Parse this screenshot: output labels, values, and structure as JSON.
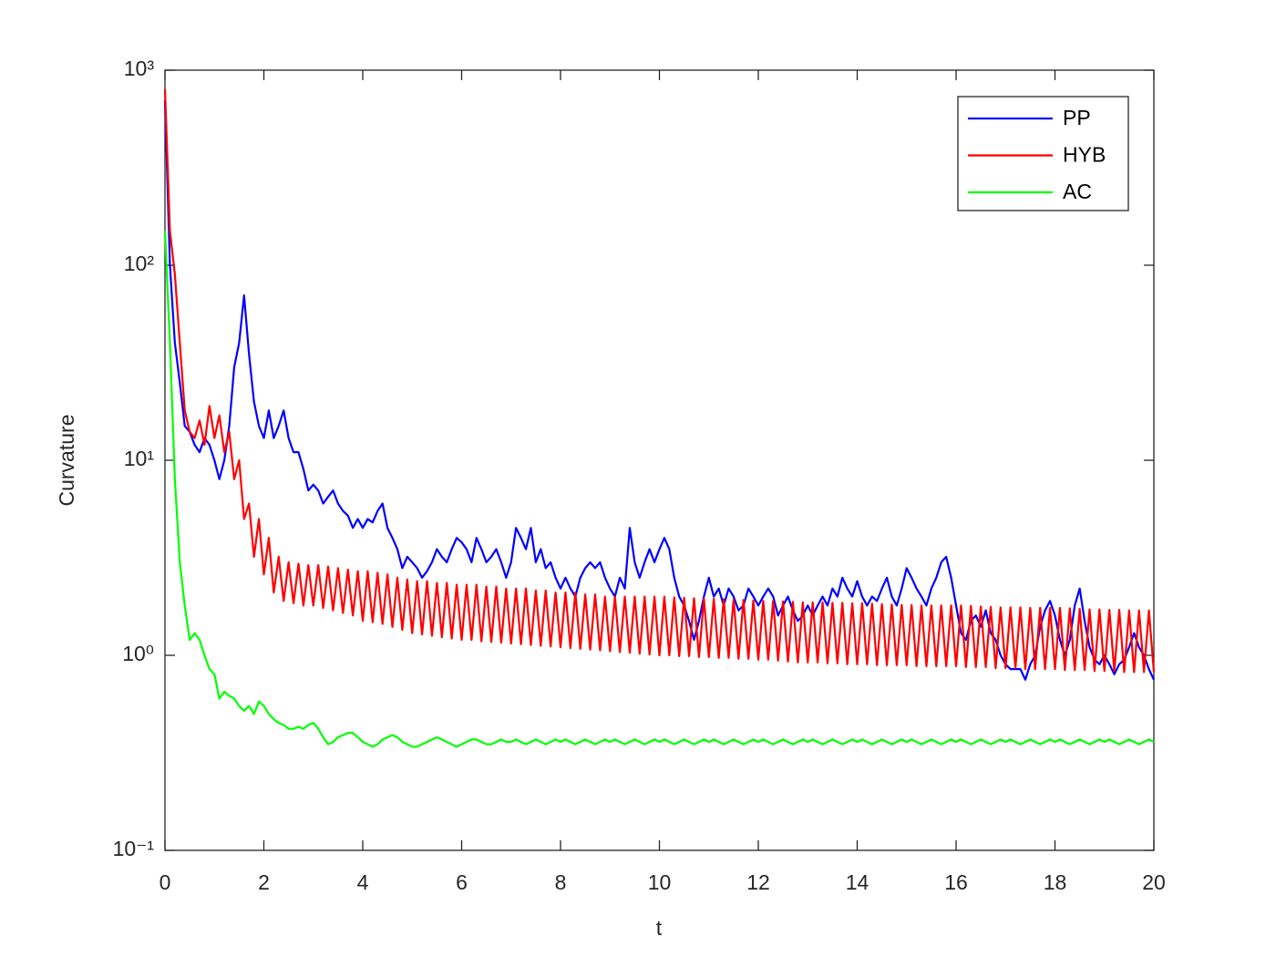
{
  "chart_data": {
    "type": "line",
    "xlabel": "t",
    "ylabel": "Curvature",
    "yscale": "log",
    "legend": "northeast",
    "xlim": [
      0,
      20
    ],
    "xticks": [
      0,
      2,
      4,
      6,
      8,
      10,
      12,
      14,
      16,
      18,
      20
    ],
    "ylim": [
      0.1,
      1000
    ],
    "yticks": [
      {
        "value": 0.1,
        "label": "10⁻¹"
      },
      {
        "value": 1,
        "label": "10⁰"
      },
      {
        "value": 10,
        "label": "10¹"
      },
      {
        "value": 100,
        "label": "10²"
      },
      {
        "value": 1000,
        "label": "10³"
      }
    ],
    "x": [
      0,
      0.1,
      0.2,
      0.3,
      0.4,
      0.5,
      0.6,
      0.7,
      0.8,
      0.9,
      1,
      1.1,
      1.2,
      1.3,
      1.4,
      1.5,
      1.6,
      1.7,
      1.8,
      1.9,
      2,
      2.1,
      2.2,
      2.3,
      2.4,
      2.5,
      2.6,
      2.7,
      2.8,
      2.9,
      3,
      3.1,
      3.2,
      3.3,
      3.4,
      3.5,
      3.6,
      3.7,
      3.8,
      3.9,
      4,
      4.1,
      4.2,
      4.3,
      4.4,
      4.5,
      4.6,
      4.7,
      4.8,
      4.9,
      5,
      5.1,
      5.2,
      5.3,
      5.4,
      5.5,
      5.6,
      5.7,
      5.8,
      5.9,
      6,
      6.1,
      6.2,
      6.3,
      6.4,
      6.5,
      6.6,
      6.7,
      6.8,
      6.9,
      7,
      7.1,
      7.2,
      7.3,
      7.4,
      7.5,
      7.6,
      7.7,
      7.8,
      7.9,
      8,
      8.1,
      8.2,
      8.3,
      8.4,
      8.5,
      8.6,
      8.7,
      8.8,
      8.9,
      9,
      9.1,
      9.2,
      9.3,
      9.4,
      9.5,
      9.6,
      9.7,
      9.8,
      9.9,
      10,
      10.1,
      10.2,
      10.3,
      10.4,
      10.5,
      10.6,
      10.7,
      10.8,
      10.9,
      11,
      11.1,
      11.2,
      11.3,
      11.4,
      11.5,
      11.6,
      11.7,
      11.8,
      11.9,
      12,
      12.1,
      12.2,
      12.3,
      12.4,
      12.5,
      12.6,
      12.7,
      12.8,
      12.9,
      13,
      13.1,
      13.2,
      13.3,
      13.4,
      13.5,
      13.6,
      13.7,
      13.8,
      13.9,
      14,
      14.1,
      14.2,
      14.3,
      14.4,
      14.5,
      14.6,
      14.7,
      14.8,
      14.9,
      15,
      15.1,
      15.2,
      15.3,
      15.4,
      15.5,
      15.6,
      15.7,
      15.8,
      15.9,
      16,
      16.1,
      16.2,
      16.3,
      16.4,
      16.5,
      16.6,
      16.7,
      16.8,
      16.9,
      17,
      17.1,
      17.2,
      17.3,
      17.4,
      17.5,
      17.6,
      17.7,
      17.8,
      17.9,
      18,
      18.1,
      18.2,
      18.3,
      18.4,
      18.5,
      18.6,
      18.7,
      18.8,
      18.9,
      19,
      19.1,
      19.2,
      19.3,
      19.4,
      19.5,
      19.6,
      19.7,
      19.8,
      19.9,
      20
    ],
    "series": [
      {
        "name": "PP",
        "color": "#0000ff",
        "values": [
          700,
          100,
          40,
          25,
          15,
          14,
          12,
          11,
          13,
          12,
          10,
          8,
          10,
          15,
          30,
          40,
          70,
          35,
          20,
          15,
          13,
          18,
          13,
          15,
          18,
          13,
          11,
          11,
          9,
          7,
          7.5,
          7,
          6,
          6.5,
          7,
          6,
          5.5,
          5.2,
          4.5,
          5,
          4.5,
          5,
          4.8,
          5.5,
          6,
          4.5,
          4,
          3.5,
          2.8,
          3.2,
          3,
          2.8,
          2.5,
          2.7,
          3,
          3.5,
          3.2,
          3,
          3.5,
          4,
          3.8,
          3.5,
          3,
          4,
          3.5,
          3,
          3.2,
          3.5,
          3,
          2.5,
          3,
          4.5,
          4,
          3.5,
          4.5,
          3,
          3.5,
          2.8,
          3,
          2.5,
          2.2,
          2.5,
          2.2,
          2,
          2.5,
          2.8,
          3,
          2.8,
          3,
          2.5,
          2.2,
          2,
          2.5,
          2.2,
          4.5,
          3,
          2.5,
          3,
          3.5,
          3,
          3.5,
          4,
          3.5,
          2.5,
          2,
          1.8,
          1.5,
          1.2,
          1.5,
          2,
          2.5,
          2,
          2.2,
          1.8,
          2.2,
          2,
          1.7,
          1.8,
          2.2,
          2,
          1.8,
          2,
          2.2,
          2,
          1.6,
          1.8,
          2,
          1.7,
          1.5,
          1.6,
          1.8,
          1.6,
          1.8,
          2,
          1.8,
          2.2,
          2,
          2.5,
          2.2,
          2,
          2.4,
          2,
          1.8,
          2,
          1.9,
          2.2,
          2.5,
          2,
          1.8,
          2.2,
          2.8,
          2.5,
          2.2,
          2,
          1.8,
          2.2,
          2.5,
          3,
          3.2,
          2.5,
          1.8,
          1.3,
          1.2,
          1.5,
          1.6,
          1.4,
          1.7,
          1.3,
          1.2,
          1,
          0.9,
          0.85,
          0.85,
          0.85,
          0.75,
          0.9,
          1,
          1.4,
          1.7,
          1.9,
          1.6,
          1.2,
          1,
          1.2,
          1.8,
          2.2,
          1.5,
          1.1,
          0.95,
          0.9,
          1,
          0.9,
          0.8,
          0.9,
          0.95,
          1.1,
          1.3,
          1.1,
          1,
          0.85,
          0.75
        ]
      },
      {
        "name": "HYB",
        "color": "#ff0000",
        "values": [
          800,
          150,
          90,
          40,
          18,
          14,
          13,
          16,
          12,
          19,
          13,
          17,
          11,
          14,
          8,
          10,
          5,
          6,
          3.2,
          5,
          2.6,
          4,
          2.1,
          3.2,
          1.9,
          3.0,
          1.85,
          2.95,
          1.8,
          2.9,
          1.8,
          2.9,
          1.75,
          2.85,
          1.7,
          2.8,
          1.65,
          2.75,
          1.6,
          2.7,
          1.5,
          2.7,
          1.48,
          2.65,
          1.45,
          2.6,
          1.4,
          2.5,
          1.35,
          2.45,
          1.3,
          2.4,
          1.28,
          2.4,
          1.26,
          2.35,
          1.24,
          2.35,
          1.22,
          2.3,
          1.2,
          2.3,
          1.2,
          2.3,
          1.18,
          2.25,
          1.17,
          2.25,
          1.16,
          2.2,
          1.15,
          2.2,
          1.14,
          2.2,
          1.13,
          2.15,
          1.12,
          2.15,
          1.11,
          2.1,
          1.1,
          2.1,
          1.09,
          2.1,
          1.08,
          2.05,
          1.07,
          2.05,
          1.06,
          2,
          1.05,
          2,
          1.04,
          2,
          1.03,
          2,
          1.02,
          2,
          1.01,
          2,
          1,
          2,
          1,
          1.98,
          0.99,
          1.97,
          0.99,
          1.96,
          0.98,
          1.95,
          0.98,
          1.95,
          0.97,
          1.94,
          0.97,
          1.93,
          0.96,
          1.92,
          0.96,
          1.91,
          0.95,
          1.9,
          0.95,
          1.9,
          0.94,
          1.89,
          0.93,
          1.88,
          0.92,
          1.87,
          0.92,
          1.87,
          0.92,
          1.87,
          0.91,
          1.86,
          0.91,
          1.86,
          0.9,
          1.85,
          0.9,
          1.85,
          0.9,
          1.84,
          0.89,
          1.83,
          0.89,
          1.82,
          0.89,
          1.81,
          0.89,
          1.81,
          0.88,
          1.8,
          0.88,
          1.8,
          0.88,
          1.8,
          0.88,
          1.8,
          0.88,
          1.8,
          0.87,
          1.79,
          0.87,
          1.78,
          0.87,
          1.77,
          0.86,
          1.76,
          0.86,
          1.76,
          0.86,
          1.76,
          0.85,
          1.75,
          0.85,
          1.75,
          0.85,
          1.75,
          0.85,
          1.75,
          0.84,
          1.74,
          0.84,
          1.73,
          0.84,
          1.72,
          0.83,
          1.72,
          0.83,
          1.71,
          0.83,
          1.71,
          0.82,
          1.7,
          0.82,
          1.7,
          0.82,
          1.7,
          0.82
        ]
      },
      {
        "name": "AC",
        "color": "#00ff00",
        "values": [
          150,
          40,
          8,
          3,
          1.8,
          1.2,
          1.3,
          1.2,
          1,
          0.85,
          0.8,
          0.6,
          0.65,
          0.62,
          0.6,
          0.55,
          0.52,
          0.55,
          0.5,
          0.58,
          0.55,
          0.5,
          0.47,
          0.45,
          0.44,
          0.42,
          0.42,
          0.43,
          0.42,
          0.44,
          0.45,
          0.42,
          0.38,
          0.35,
          0.36,
          0.38,
          0.39,
          0.4,
          0.4,
          0.38,
          0.36,
          0.35,
          0.34,
          0.35,
          0.37,
          0.38,
          0.39,
          0.38,
          0.36,
          0.35,
          0.34,
          0.34,
          0.35,
          0.36,
          0.37,
          0.38,
          0.37,
          0.36,
          0.35,
          0.34,
          0.35,
          0.36,
          0.37,
          0.37,
          0.36,
          0.35,
          0.35,
          0.36,
          0.37,
          0.36,
          0.36,
          0.37,
          0.36,
          0.35,
          0.36,
          0.37,
          0.36,
          0.35,
          0.36,
          0.37,
          0.36,
          0.37,
          0.36,
          0.35,
          0.36,
          0.37,
          0.36,
          0.35,
          0.36,
          0.37,
          0.36,
          0.37,
          0.36,
          0.35,
          0.36,
          0.37,
          0.36,
          0.35,
          0.36,
          0.37,
          0.36,
          0.37,
          0.36,
          0.35,
          0.36,
          0.37,
          0.36,
          0.35,
          0.36,
          0.37,
          0.36,
          0.37,
          0.36,
          0.35,
          0.36,
          0.37,
          0.36,
          0.35,
          0.36,
          0.37,
          0.36,
          0.37,
          0.36,
          0.35,
          0.36,
          0.37,
          0.36,
          0.35,
          0.36,
          0.37,
          0.36,
          0.37,
          0.36,
          0.35,
          0.36,
          0.37,
          0.36,
          0.35,
          0.36,
          0.37,
          0.36,
          0.37,
          0.36,
          0.35,
          0.36,
          0.37,
          0.36,
          0.35,
          0.36,
          0.37,
          0.36,
          0.37,
          0.36,
          0.35,
          0.36,
          0.37,
          0.36,
          0.35,
          0.36,
          0.37,
          0.36,
          0.37,
          0.36,
          0.35,
          0.36,
          0.37,
          0.36,
          0.35,
          0.36,
          0.37,
          0.36,
          0.37,
          0.36,
          0.35,
          0.36,
          0.37,
          0.36,
          0.35,
          0.36,
          0.37,
          0.36,
          0.37,
          0.36,
          0.35,
          0.36,
          0.37,
          0.36,
          0.35,
          0.36,
          0.37,
          0.36,
          0.37,
          0.36,
          0.35,
          0.36,
          0.37,
          0.36,
          0.35,
          0.36,
          0.37,
          0.36
        ]
      }
    ]
  }
}
